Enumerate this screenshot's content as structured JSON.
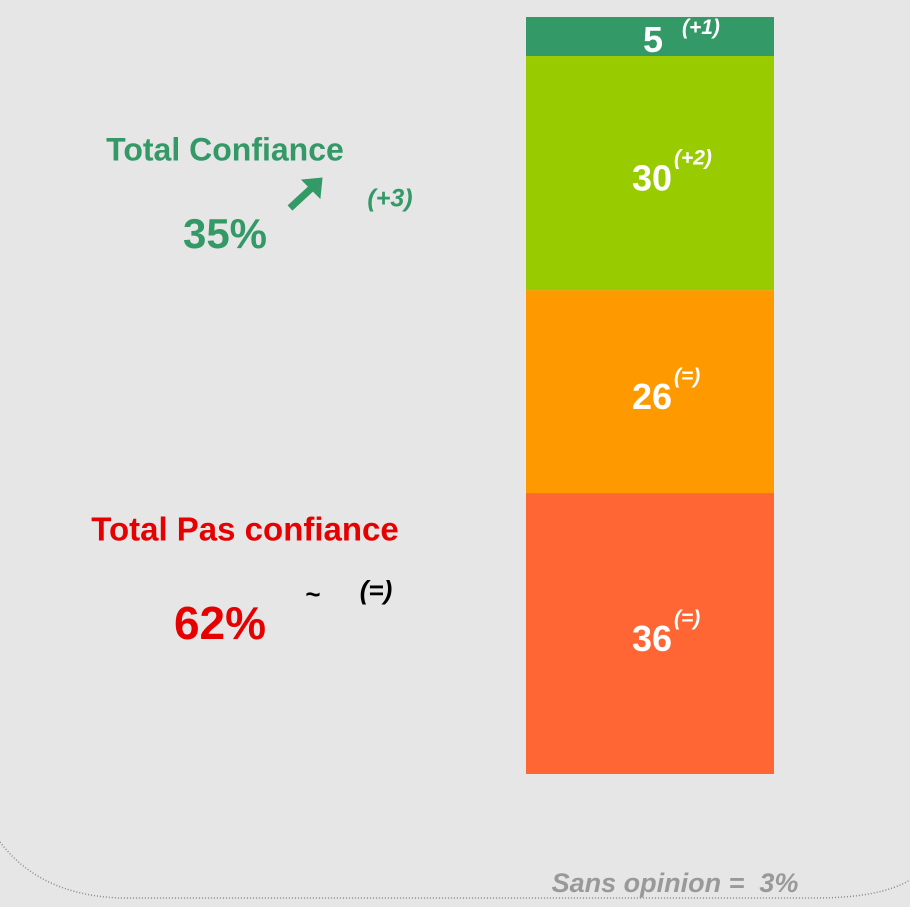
{
  "chart_data": {
    "type": "stacked-bar",
    "series": [
      {
        "color": "#ff6633",
        "values": [
          36
        ],
        "change": "(=)"
      },
      {
        "color": "#ff9900",
        "values": [
          26
        ],
        "change": "(=)"
      },
      {
        "color": "#99cc00",
        "values": [
          30
        ],
        "change": "(+2)"
      },
      {
        "color": "#339966",
        "values": [
          5
        ],
        "change": "(+1)"
      }
    ],
    "annotations": {
      "confiance": {
        "title": "Total Confiance",
        "total": "35%",
        "change": "(+3)",
        "color": "#339966"
      },
      "pas_confiance": {
        "title": "Total Pas confiance",
        "total": "62%",
        "trend": "~",
        "change": "(=)",
        "color": "#e60000"
      },
      "sans_opinion": "Sans opinion =  3%"
    }
  }
}
